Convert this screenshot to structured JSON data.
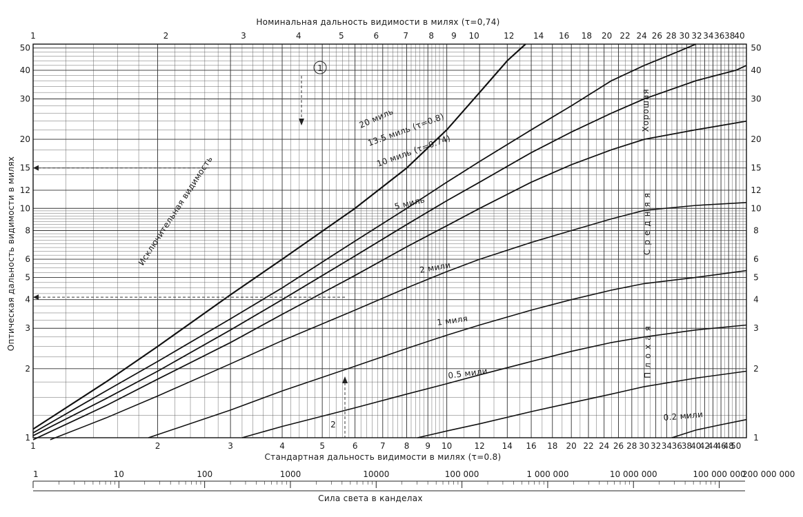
{
  "chart_data": {
    "type": "line",
    "top_axis_title": "Номинальная дальность видимости в милях (τ=0,74)",
    "bottom_axis_title": "Стандартная дальность видимости в милях (τ=0.8)",
    "ylabel": "Оптическая дальность видимости в милях",
    "candela_axis_title": "Сила света в канделах",
    "x_scale": "log",
    "y_scale": "log",
    "xlim": [
      1,
      53
    ],
    "ylim": [
      1,
      52
    ],
    "top_ticks": [
      "1",
      "2",
      "3",
      "4",
      "5",
      "6",
      "7",
      "8",
      "9",
      "10",
      "12",
      "14",
      "16",
      "18",
      "20",
      "22",
      "24",
      "26",
      "28",
      "30",
      "32",
      "34",
      "36",
      "38",
      "40"
    ],
    "bottom_ticks": [
      "1",
      "2",
      "3",
      "4",
      "5",
      "6",
      "7",
      "8",
      "9",
      "10",
      "12",
      "14",
      "16",
      "18",
      "20",
      "22",
      "24",
      "26",
      "28",
      "30",
      "32",
      "34",
      "36",
      "38",
      "40",
      "42",
      "44",
      "46",
      "48",
      "50"
    ],
    "left_ticks": [
      "1",
      "2",
      "3",
      "4",
      "5",
      "6",
      "8",
      "10",
      "12",
      "15",
      "20",
      "30",
      "40",
      "50"
    ],
    "right_ticks": [
      "1",
      "2",
      "3",
      "4",
      "5",
      "6",
      "8",
      "10",
      "12",
      "15",
      "20",
      "30",
      "40",
      "50"
    ],
    "candela_ticks": [
      "1",
      "10",
      "100",
      "1000",
      "10000",
      "100 000",
      "1 000 000",
      "10 000 000",
      "100 000 000",
      "200 000 000"
    ],
    "series": [
      {
        "name": "Исключительная видимость",
        "points": [
          [
            1.0,
            1.09
          ],
          [
            1.5,
            1.75
          ],
          [
            2,
            2.5
          ],
          [
            3,
            4.2
          ],
          [
            4,
            6
          ],
          [
            6,
            10
          ],
          [
            8,
            15
          ],
          [
            10,
            22
          ],
          [
            12,
            32
          ],
          [
            14,
            44
          ],
          [
            15.5,
            52
          ]
        ]
      },
      {
        "name": "20 миль",
        "points": [
          [
            1.0,
            1.05
          ],
          [
            1.5,
            1.6
          ],
          [
            2,
            2.15
          ],
          [
            3,
            3.3
          ],
          [
            4,
            4.5
          ],
          [
            6,
            7.2
          ],
          [
            8,
            10
          ],
          [
            10,
            13
          ],
          [
            12,
            16
          ],
          [
            16,
            22
          ],
          [
            20,
            28
          ],
          [
            25,
            36
          ],
          [
            30,
            42
          ],
          [
            36,
            48
          ],
          [
            40,
            52
          ]
        ]
      },
      {
        "name": "13.5 миль (τ=0.8)",
        "points": [
          [
            1.0,
            1.02
          ],
          [
            1.5,
            1.48
          ],
          [
            2,
            1.95
          ],
          [
            3,
            2.95
          ],
          [
            4,
            4
          ],
          [
            6,
            6.2
          ],
          [
            8,
            8.5
          ],
          [
            10,
            10.8
          ],
          [
            12,
            13
          ],
          [
            16,
            17.5
          ],
          [
            20,
            21.5
          ],
          [
            25,
            26
          ],
          [
            30,
            30
          ],
          [
            40,
            36
          ],
          [
            50,
            40
          ],
          [
            53,
            42
          ]
        ]
      },
      {
        "name": "10 миль (τ=0.74)",
        "points": [
          [
            1.0,
            0.98
          ],
          [
            1.5,
            1.38
          ],
          [
            2,
            1.8
          ],
          [
            3,
            2.6
          ],
          [
            4,
            3.45
          ],
          [
            6,
            5.1
          ],
          [
            8,
            6.8
          ],
          [
            10,
            8.4
          ],
          [
            12,
            10
          ],
          [
            16,
            13
          ],
          [
            20,
            15.5
          ],
          [
            25,
            18
          ],
          [
            30,
            20
          ],
          [
            40,
            22
          ],
          [
            53,
            24
          ]
        ]
      },
      {
        "name": "5 миль",
        "points": [
          [
            1.1,
            0.98
          ],
          [
            1.5,
            1.22
          ],
          [
            2,
            1.52
          ],
          [
            3,
            2.1
          ],
          [
            4,
            2.65
          ],
          [
            6,
            3.6
          ],
          [
            8,
            4.5
          ],
          [
            10,
            5.3
          ],
          [
            12,
            6
          ],
          [
            16,
            7.1
          ],
          [
            20,
            8
          ],
          [
            25,
            9
          ],
          [
            30,
            9.8
          ],
          [
            40,
            10.3
          ],
          [
            53,
            10.6
          ]
        ]
      },
      {
        "name": "2 мили",
        "points": [
          [
            1.9,
            1.0
          ],
          [
            3,
            1.32
          ],
          [
            4,
            1.6
          ],
          [
            6,
            2.05
          ],
          [
            8,
            2.45
          ],
          [
            10,
            2.8
          ],
          [
            12,
            3.1
          ],
          [
            16,
            3.6
          ],
          [
            20,
            4.0
          ],
          [
            25,
            4.4
          ],
          [
            30,
            4.7
          ],
          [
            40,
            5.0
          ],
          [
            53,
            5.35
          ]
        ]
      },
      {
        "name": "1 миля",
        "points": [
          [
            3.2,
            1.0
          ],
          [
            4,
            1.12
          ],
          [
            6,
            1.35
          ],
          [
            8,
            1.55
          ],
          [
            10,
            1.72
          ],
          [
            12,
            1.88
          ],
          [
            16,
            2.15
          ],
          [
            20,
            2.38
          ],
          [
            25,
            2.6
          ],
          [
            30,
            2.75
          ],
          [
            40,
            2.95
          ],
          [
            53,
            3.1
          ]
        ]
      },
      {
        "name": "0.5 мили",
        "points": [
          [
            8.5,
            1.0
          ],
          [
            10,
            1.07
          ],
          [
            12,
            1.15
          ],
          [
            16,
            1.3
          ],
          [
            20,
            1.42
          ],
          [
            25,
            1.55
          ],
          [
            30,
            1.67
          ],
          [
            40,
            1.82
          ],
          [
            53,
            1.95
          ]
        ]
      },
      {
        "name": "0.2 мили",
        "points": [
          [
            35,
            1.0
          ],
          [
            40,
            1.08
          ],
          [
            46,
            1.14
          ],
          [
            53,
            1.2
          ]
        ]
      }
    ],
    "curve_labels": {
      "exceptional": "Исключительная видимость",
      "miles20": "20 миль",
      "miles13_5": "13.5 миль (τ=0.8)",
      "miles10": "10 миль (τ=0.74)",
      "miles5": "5 миль",
      "miles2": "2 мили",
      "mile1": "1 миля",
      "miles0_5": "0.5 мили",
      "miles0_2": "0.2 мили"
    },
    "zone_labels": {
      "good": "Хорошая",
      "medium": "Средняя",
      "poor": "Плохая"
    },
    "annotations": {
      "marker_1": "1",
      "marker_2": "2"
    },
    "grid": true
  }
}
